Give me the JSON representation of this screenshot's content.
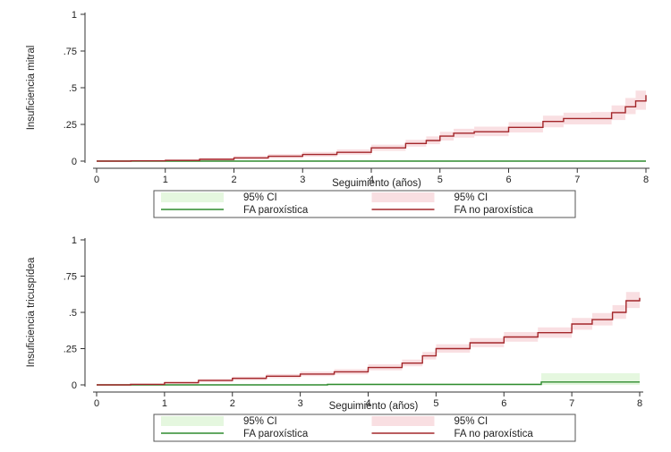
{
  "chart_data": [
    {
      "type": "line",
      "ylabel": "Insuficiencia mitral",
      "xlabel": "Seguimiento (años)",
      "xlim": [
        0,
        8
      ],
      "ylim": [
        0,
        1
      ],
      "x_ticks": [
        0,
        1,
        2,
        3,
        4,
        5,
        6,
        7,
        8
      ],
      "x_tick_labels": [
        "0",
        "1",
        "2",
        "3",
        "4",
        "5",
        "6",
        "7",
        "8"
      ],
      "y_ticks": [
        0,
        0.25,
        0.5,
        0.75,
        1
      ],
      "y_tick_labels": [
        "0",
        ".25",
        ".5",
        ".75",
        "1"
      ],
      "grid": false,
      "legend_position": "bottom",
      "legend": [
        {
          "label": "95% CI",
          "kind": "band",
          "series": 0
        },
        {
          "label": "95% CI",
          "kind": "band",
          "series": 1
        },
        {
          "label": "FA paroxística",
          "kind": "line",
          "series": 0
        },
        {
          "label": "FA no paroxística",
          "kind": "line",
          "series": 1
        }
      ],
      "series": [
        {
          "name": "FA paroxística",
          "color": "#2e8b2e",
          "band_color": "#e5f7df",
          "x": [
            0,
            8
          ],
          "y": [
            0,
            0
          ],
          "lower": [
            0,
            0
          ],
          "upper": [
            0,
            0
          ]
        },
        {
          "name": "FA no paroxística",
          "color": "#a3262a",
          "band_color": "#f9dfe2",
          "x": [
            0,
            0.5,
            1,
            1.5,
            2,
            2.5,
            3,
            3.5,
            4,
            4.5,
            4.8,
            5,
            5.2,
            5.5,
            6,
            6.5,
            6.8,
            7,
            7.2,
            7.5,
            7.7,
            7.85,
            8
          ],
          "y": [
            0,
            0.002,
            0.005,
            0.012,
            0.022,
            0.033,
            0.045,
            0.06,
            0.09,
            0.12,
            0.14,
            0.17,
            0.19,
            0.2,
            0.23,
            0.27,
            0.29,
            0.29,
            0.29,
            0.33,
            0.37,
            0.41,
            0.45
          ],
          "lower": [
            0,
            0,
            0,
            0.005,
            0.012,
            0.02,
            0.03,
            0.043,
            0.07,
            0.098,
            0.115,
            0.14,
            0.16,
            0.17,
            0.195,
            0.23,
            0.25,
            0.25,
            0.25,
            0.28,
            0.32,
            0.35,
            0.38
          ],
          "upper": [
            0,
            0.006,
            0.012,
            0.022,
            0.035,
            0.048,
            0.062,
            0.08,
            0.112,
            0.145,
            0.168,
            0.2,
            0.22,
            0.235,
            0.265,
            0.31,
            0.33,
            0.33,
            0.335,
            0.38,
            0.43,
            0.48,
            0.53
          ]
        }
      ]
    },
    {
      "type": "line",
      "ylabel": "Insuficiencia tricuspídea",
      "xlabel": "Seguimiento (años)",
      "xlim": [
        0,
        8
      ],
      "ylim": [
        0,
        1
      ],
      "x_ticks": [
        0,
        1,
        2,
        3,
        4,
        5,
        6,
        7,
        8
      ],
      "x_tick_labels": [
        "0",
        "1",
        "2",
        "3",
        "4",
        "5",
        "6",
        "7",
        "8"
      ],
      "y_ticks": [
        0,
        0.25,
        0.5,
        0.75,
        1
      ],
      "y_tick_labels": [
        "0",
        ".25",
        ".5",
        ".75",
        "1"
      ],
      "grid": false,
      "legend_position": "bottom",
      "legend": [
        {
          "label": "95% CI",
          "kind": "band",
          "series": 0
        },
        {
          "label": "95% CI",
          "kind": "band",
          "series": 1
        },
        {
          "label": "FA paroxística",
          "kind": "line",
          "series": 0
        },
        {
          "label": "FA no paroxística",
          "kind": "line",
          "series": 1
        }
      ],
      "series": [
        {
          "name": "FA paroxística",
          "color": "#2e8b2e",
          "band_color": "#e5f7df",
          "x": [
            0,
            3.4,
            6.55,
            8
          ],
          "y": [
            0,
            0.003,
            0.02,
            0.02
          ],
          "lower": [
            0,
            0,
            0,
            0
          ],
          "upper": [
            0,
            0.01,
            0.08,
            0.08
          ]
        },
        {
          "name": "FA no paroxística",
          "color": "#a3262a",
          "band_color": "#f9dfe2",
          "x": [
            0,
            0.5,
            1,
            1.5,
            2,
            2.5,
            3,
            3.5,
            4,
            4.5,
            4.8,
            5,
            5.5,
            6,
            6.5,
            7,
            7.3,
            7.6,
            7.8,
            8
          ],
          "y": [
            0,
            0.004,
            0.015,
            0.03,
            0.045,
            0.06,
            0.075,
            0.09,
            0.12,
            0.15,
            0.2,
            0.25,
            0.29,
            0.33,
            0.36,
            0.42,
            0.45,
            0.5,
            0.58,
            0.6
          ],
          "lower": [
            0,
            0,
            0.008,
            0.02,
            0.033,
            0.046,
            0.06,
            0.073,
            0.1,
            0.128,
            0.175,
            0.222,
            0.26,
            0.298,
            0.325,
            0.38,
            0.41,
            0.455,
            0.53,
            0.55
          ],
          "upper": [
            0,
            0.009,
            0.024,
            0.042,
            0.058,
            0.075,
            0.092,
            0.108,
            0.142,
            0.174,
            0.227,
            0.28,
            0.322,
            0.364,
            0.397,
            0.462,
            0.495,
            0.55,
            0.64,
            0.67
          ]
        }
      ]
    }
  ]
}
